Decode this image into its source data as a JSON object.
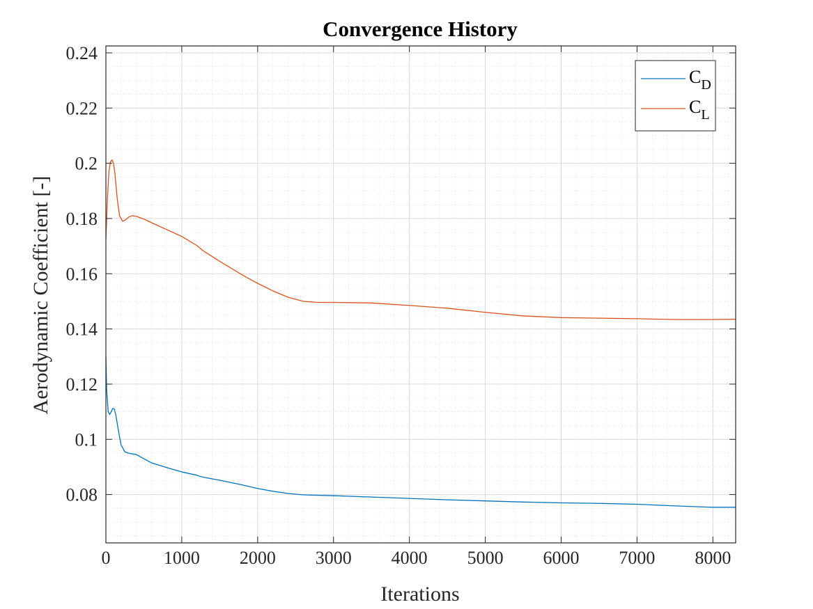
{
  "chart_data": {
    "type": "line",
    "title": "Convergence History",
    "xlabel": "Iterations",
    "ylabel": "Aerodynamic Coefficient [-]",
    "xlim": [
      0,
      8300
    ],
    "ylim": [
      0.0625,
      0.2425
    ],
    "xticks": [
      0,
      1000,
      2000,
      3000,
      4000,
      5000,
      6000,
      7000,
      8000
    ],
    "xtick_labels": [
      "0",
      "1000",
      "2000",
      "3000",
      "4000",
      "5000",
      "6000",
      "7000",
      "8000"
    ],
    "yticks": [
      0.08,
      0.1,
      0.12,
      0.14,
      0.16,
      0.18,
      0.2,
      0.22,
      0.24
    ],
    "ytick_labels": [
      "0.08",
      "0.1",
      "0.12",
      "0.14",
      "0.16",
      "0.18",
      "0.2",
      "0.22",
      "0.24"
    ],
    "grid": true,
    "minor_grid": true,
    "legend_position": "top-right",
    "series": [
      {
        "name": "C",
        "subscript": "D",
        "color": "#0072BD",
        "x": [
          0,
          10,
          30,
          50,
          70,
          90,
          110,
          130,
          160,
          200,
          250,
          300,
          400,
          500,
          600,
          800,
          1000,
          1200,
          1250,
          1300,
          1500,
          1800,
          2000,
          2200,
          2400,
          2600,
          3000,
          3500,
          4000,
          4500,
          5000,
          5500,
          6000,
          6500,
          7000,
          7500,
          8000,
          8300
        ],
        "y": [
          0.13,
          0.118,
          0.11,
          0.109,
          0.11,
          0.1112,
          0.111,
          0.109,
          0.104,
          0.098,
          0.0955,
          0.095,
          0.0945,
          0.093,
          0.0915,
          0.0898,
          0.0882,
          0.087,
          0.0865,
          0.0862,
          0.0852,
          0.0835,
          0.0822,
          0.0812,
          0.0804,
          0.0799,
          0.0796,
          0.0791,
          0.0786,
          0.0781,
          0.0777,
          0.0773,
          0.077,
          0.0768,
          0.0765,
          0.0759,
          0.0754,
          0.0754
        ]
      },
      {
        "name": "C",
        "subscript": "L",
        "color": "#D95319",
        "x": [
          0,
          20,
          40,
          60,
          80,
          100,
          120,
          150,
          180,
          220,
          260,
          300,
          350,
          400,
          500,
          600,
          800,
          1000,
          1150,
          1200,
          1250,
          1300,
          1500,
          1800,
          2000,
          2200,
          2400,
          2600,
          2800,
          3000,
          3500,
          4000,
          4500,
          5000,
          5500,
          6000,
          6500,
          7000,
          7500,
          8000,
          8300
        ],
        "y": [
          0.1725,
          0.187,
          0.197,
          0.2005,
          0.2012,
          0.2,
          0.196,
          0.187,
          0.181,
          0.179,
          0.1795,
          0.1805,
          0.181,
          0.1808,
          0.1798,
          0.1785,
          0.176,
          0.1735,
          0.171,
          0.1702,
          0.169,
          0.168,
          0.1645,
          0.1595,
          0.1565,
          0.1538,
          0.1515,
          0.15,
          0.1496,
          0.1496,
          0.1494,
          0.1485,
          0.1475,
          0.146,
          0.1447,
          0.1441,
          0.1439,
          0.1437,
          0.1434,
          0.1434,
          0.1435
        ]
      }
    ]
  }
}
